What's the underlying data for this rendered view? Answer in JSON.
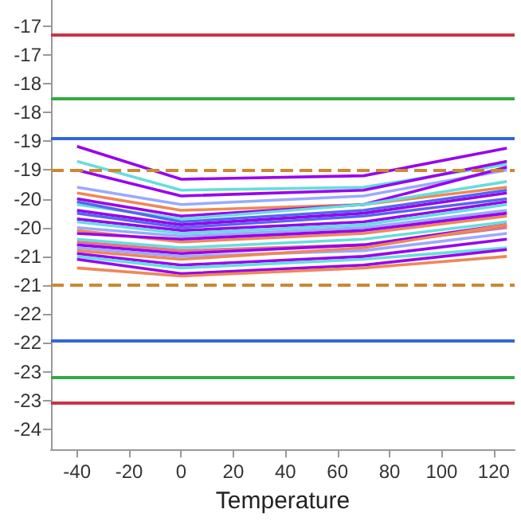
{
  "chart_data": {
    "type": "line",
    "xlabel": "Temperature",
    "x": [
      -40,
      0,
      70,
      125
    ],
    "xlim": [
      -50,
      128
    ],
    "xticks": [
      -40,
      -20,
      0,
      20,
      40,
      60,
      80,
      100,
      120
    ],
    "ylim": [
      -23.85,
      -16.05
    ],
    "yticks": [
      {
        "value": -16.5,
        "label": "-17"
      },
      {
        "value": -17,
        "label": "-17"
      },
      {
        "value": -17.5,
        "label": "-18"
      },
      {
        "value": -18,
        "label": "-18"
      },
      {
        "value": -18.5,
        "label": "-19"
      },
      {
        "value": -19,
        "label": "-19"
      },
      {
        "value": -19.5,
        "label": "-20"
      },
      {
        "value": -20,
        "label": "-20"
      },
      {
        "value": -20.5,
        "label": "-21"
      },
      {
        "value": -21,
        "label": "-21"
      },
      {
        "value": -21.5,
        "label": "-22"
      },
      {
        "value": -22,
        "label": "-22"
      },
      {
        "value": -22.5,
        "label": "-23"
      },
      {
        "value": -23,
        "label": "-23"
      },
      {
        "value": -23.5,
        "label": "-24"
      }
    ],
    "grid": false,
    "marker": "none",
    "line_style": "solid",
    "ref_lines": [
      {
        "axis": "y",
        "value": -16.65,
        "color": "#cc3344",
        "line_style": "solid"
      },
      {
        "axis": "y",
        "value": -17.75,
        "color": "#33aa44",
        "line_style": "solid"
      },
      {
        "axis": "y",
        "value": -18.45,
        "color": "#3366dd",
        "line_style": "solid"
      },
      {
        "axis": "y",
        "value": -19,
        "color": "#cc8833",
        "line_style": "dashed"
      },
      {
        "axis": "y",
        "value": -21,
        "color": "#cc8833",
        "line_style": "dashed"
      },
      {
        "axis": "y",
        "value": -21.95,
        "color": "#3366dd",
        "line_style": "solid"
      },
      {
        "axis": "y",
        "value": -22.6,
        "color": "#33aa44",
        "line_style": "solid"
      },
      {
        "axis": "y",
        "value": -23.05,
        "color": "#cc3344",
        "line_style": "solid"
      }
    ],
    "series": [
      {
        "color": "#9900ee",
        "values": [
          -18.59,
          -19.16,
          -19.1,
          -18.62
        ]
      },
      {
        "color": "#66dddd",
        "values": [
          -18.85,
          -19.35,
          -19.3,
          -18.9
        ]
      },
      {
        "color": "#9900ee",
        "values": [
          -19.0,
          -19.45,
          -19.35,
          -18.85
        ]
      },
      {
        "color": "#99aaff",
        "values": [
          -19.3,
          -19.6,
          -19.45,
          -19.0
        ]
      },
      {
        "color": "#ee8855",
        "values": [
          -19.4,
          -19.7,
          -19.6,
          -19.3
        ]
      },
      {
        "color": "#9900ee",
        "values": [
          -19.5,
          -19.8,
          -19.6,
          -18.95
        ]
      },
      {
        "color": "#66dddd",
        "values": [
          -19.6,
          -19.85,
          -19.6,
          -19.2
        ]
      },
      {
        "color": "#9900ee",
        "values": [
          -19.7,
          -19.95,
          -19.75,
          -19.4
        ]
      },
      {
        "color": "#5566ee",
        "values": [
          -19.75,
          -20.0,
          -19.8,
          -19.5
        ]
      },
      {
        "color": "#9900ee",
        "values": [
          -19.85,
          -20.05,
          -19.9,
          -19.55
        ]
      },
      {
        "color": "#66dddd",
        "values": [
          -19.9,
          -20.1,
          -19.95,
          -19.6
        ]
      },
      {
        "color": "#99aaff",
        "values": [
          -20.0,
          -20.15,
          -20.0,
          -19.7
        ]
      },
      {
        "color": "#ee8855",
        "values": [
          -20.05,
          -20.25,
          -20.1,
          -19.8
        ]
      },
      {
        "color": "#9900ee",
        "values": [
          -20.1,
          -20.2,
          -20.05,
          -19.75
        ]
      },
      {
        "color": "#66dddd",
        "values": [
          -20.2,
          -20.35,
          -20.2,
          -19.9
        ]
      },
      {
        "color": "#dd7788",
        "values": [
          -20.25,
          -20.4,
          -20.3,
          -20.0
        ]
      },
      {
        "color": "#9900ee",
        "values": [
          -20.3,
          -20.45,
          -20.3,
          -19.95
        ]
      },
      {
        "color": "#99aaff",
        "values": [
          -20.35,
          -20.5,
          -20.4,
          -20.1
        ]
      },
      {
        "color": "#ee8855",
        "values": [
          -20.4,
          -20.55,
          -20.35,
          -19.95
        ]
      },
      {
        "color": "#9900ee",
        "values": [
          -20.45,
          -20.65,
          -20.5,
          -20.2
        ]
      },
      {
        "color": "#66dddd",
        "values": [
          -20.5,
          -20.7,
          -20.55,
          -20.35
        ]
      },
      {
        "color": "#9900ee",
        "values": [
          -20.55,
          -20.8,
          -20.65,
          -20.38
        ]
      },
      {
        "color": "#ee8855",
        "values": [
          -20.7,
          -20.84,
          -20.7,
          -20.5
        ]
      },
      {
        "color": "#5566ee",
        "values": [
          -19.55,
          -19.9,
          -19.7,
          -19.35
        ]
      }
    ]
  }
}
